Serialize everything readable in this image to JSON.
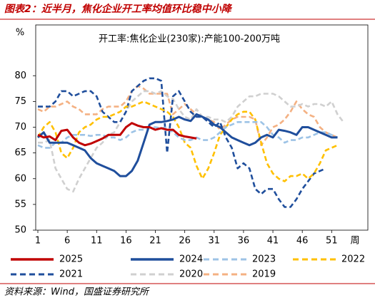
{
  "header": {
    "title": "图表2：近半月，焦化企业开工率均值环比稳中小降"
  },
  "source": "资料来源：Wind，国盛证券研究所",
  "chart_data": {
    "type": "line",
    "title": "开工率:焦化企业(230家):产能100-200万吨",
    "y_label": "%",
    "x_label": "周",
    "x": [
      1,
      2,
      3,
      4,
      5,
      6,
      7,
      8,
      9,
      10,
      11,
      12,
      13,
      14,
      15,
      16,
      17,
      18,
      19,
      20,
      21,
      22,
      23,
      24,
      25,
      26,
      27,
      28,
      29,
      30,
      31,
      32,
      33,
      34,
      35,
      36,
      37,
      38,
      39,
      40,
      41,
      42,
      43,
      44,
      45,
      46,
      47,
      48,
      49,
      50,
      51,
      52,
      53
    ],
    "xlim": [
      1,
      54
    ],
    "xticks": [
      1,
      6,
      11,
      16,
      21,
      26,
      31,
      36,
      41,
      46,
      51
    ],
    "ylim": [
      50,
      90
    ],
    "yticks": [
      50,
      55,
      60,
      65,
      70,
      75,
      80
    ],
    "series": [
      {
        "name": "2025",
        "color": "#c00000",
        "style": "solid",
        "values": [
          68.5,
          68,
          68.2,
          67.5,
          69.3,
          69.5,
          68,
          67,
          66.5,
          66.8,
          67.3,
          67.8,
          68.5,
          68.5,
          68.5,
          70,
          70.8,
          70.3,
          70,
          70,
          69.5,
          69.8,
          69.5,
          69.5,
          68.5,
          68.2,
          68,
          67.8,
          null,
          null,
          null,
          null,
          null,
          null,
          null,
          null,
          null,
          null,
          null,
          null,
          null,
          null,
          null,
          null,
          null,
          null,
          null,
          null,
          null,
          null,
          null,
          null,
          null
        ]
      },
      {
        "name": "2024",
        "color": "#1f4e9c",
        "style": "solid",
        "values": [
          68,
          69,
          67,
          67,
          67,
          67,
          66.5,
          66,
          65.5,
          64,
          63,
          62.5,
          62,
          61.5,
          60.5,
          60.5,
          61.5,
          63.5,
          67,
          70.5,
          71,
          71,
          71.2,
          71.5,
          72,
          71.5,
          71.2,
          72.5,
          72,
          71.5,
          70.5,
          70,
          69,
          68,
          67.5,
          67,
          66.5,
          67,
          68,
          68.5,
          68,
          69.5,
          69.3,
          69,
          68.5,
          70,
          70,
          69.5,
          69,
          68.5,
          68,
          68,
          null
        ]
      },
      {
        "name": "2023",
        "color": "#9dc3e6",
        "style": "dashed",
        "values": [
          66.5,
          66,
          66,
          67,
          67,
          68,
          68.5,
          68.5,
          68.5,
          68.3,
          68.5,
          68.5,
          68,
          68,
          67.5,
          68,
          69,
          69.5,
          69.5,
          70,
          70,
          69.8,
          70,
          69,
          68,
          67.5,
          67.5,
          68,
          67.5,
          67.5,
          68,
          69,
          70,
          70.5,
          71,
          71,
          71,
          71,
          71,
          70,
          68.5,
          68,
          67,
          67.5,
          67.5,
          68,
          68,
          68.5,
          69,
          69,
          68.5,
          68,
          null
        ]
      },
      {
        "name": "2022",
        "color": "#ffc000",
        "style": "dashed",
        "values": [
          68,
          70,
          71,
          69,
          65,
          64,
          66,
          69,
          70,
          70.5,
          71.5,
          72,
          72,
          72.5,
          73,
          74,
          74,
          74.5,
          75,
          74.5,
          74,
          73.5,
          73,
          72,
          70,
          67,
          66,
          62.5,
          60,
          62,
          65,
          68.5,
          70,
          71.5,
          72.5,
          73,
          73,
          71.5,
          67,
          63,
          61,
          60,
          59.5,
          60.5,
          60.5,
          61,
          60,
          61,
          63,
          65.5,
          66,
          66.5,
          null
        ]
      },
      {
        "name": "2021",
        "color": "#1f4e9c",
        "style": "dashed",
        "values": [
          74,
          74,
          74,
          75,
          77,
          77,
          76,
          76.5,
          77,
          77,
          76,
          73,
          72,
          71,
          71,
          73,
          77,
          78,
          79,
          79.5,
          79.5,
          79,
          65,
          76,
          77,
          75,
          73,
          72,
          72,
          71,
          70,
          71,
          68,
          66,
          62,
          63,
          62,
          58,
          57,
          58,
          58,
          56,
          54.5,
          54.5,
          56,
          58,
          59.5,
          61,
          61.5,
          62,
          null,
          null,
          null
        ]
      },
      {
        "name": "2020",
        "color": "#d0d0d0",
        "style": "dashed",
        "values": [
          67,
          67,
          67.5,
          62,
          60,
          58,
          57.5,
          60,
          62,
          64,
          66,
          67,
          68.5,
          69,
          71,
          73,
          75,
          76,
          77,
          77,
          76.5,
          77,
          76,
          75.5,
          73.5,
          72,
          71.5,
          73.5,
          72,
          72,
          71.5,
          71.5,
          71,
          72,
          74,
          75,
          76,
          76,
          76.5,
          76.5,
          76.5,
          76,
          75,
          74,
          74,
          74.5,
          74,
          74.5,
          74.5,
          74,
          75,
          72.5,
          71
        ]
      },
      {
        "name": "2019",
        "color": "#f4b183",
        "style": "dashed",
        "values": [
          73.5,
          73,
          74,
          74,
          74.5,
          75,
          74,
          73.5,
          72.5,
          72.5,
          72.5,
          73.5,
          74,
          74,
          74,
          75,
          77,
          78,
          77.5,
          76.5,
          76.5,
          76.5,
          76.5,
          72.5,
          73.5,
          74.5,
          73.5,
          72.5,
          72,
          71.5,
          71,
          69.5,
          70.5,
          71.5,
          72,
          72,
          72,
          71.5,
          66.5,
          68,
          70,
          70.5,
          71.5,
          73,
          75,
          73.5,
          72.5,
          72,
          70,
          69,
          68.5,
          68,
          null
        ]
      }
    ]
  }
}
